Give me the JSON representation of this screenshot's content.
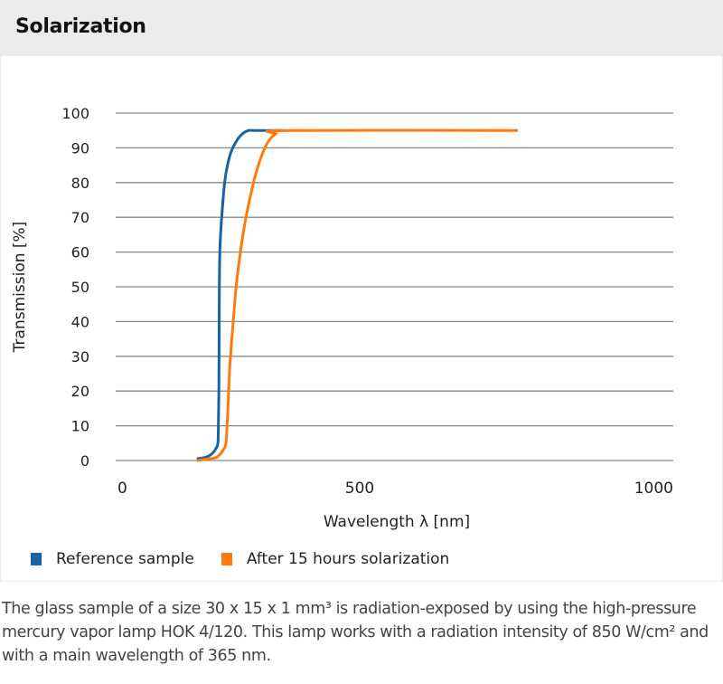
{
  "header": {
    "title": "Solarization"
  },
  "chart_data": {
    "type": "line",
    "title": "",
    "xlabel": "Wavelength λ [nm]",
    "ylabel": "Transmission [%]",
    "xlim": [
      0,
      1000
    ],
    "ylim": [
      0,
      100
    ],
    "xticks": [
      "0",
      "500",
      "1000"
    ],
    "yticks": [
      "0",
      "10",
      "20",
      "30",
      "40",
      "50",
      "60",
      "70",
      "80",
      "90",
      "100"
    ],
    "grid": "horizontal",
    "legend_position": "bottom-left",
    "series": [
      {
        "name": "Reference sample",
        "color": "#1763a6",
        "x": [
          160,
          180,
          192,
          200,
          204,
          205,
          206,
          206.5,
          207,
          208,
          210,
          213,
          218,
          224,
          232,
          243,
          255,
          268,
          280,
          343
        ],
        "y": [
          0.5,
          1,
          2,
          3.5,
          5,
          10,
          20,
          35,
          50,
          60,
          66,
          72,
          80,
          85,
          89,
          92,
          94,
          95,
          95,
          95
        ]
      },
      {
        "name": "After 15 hours solarization",
        "color": "#ff7a0e",
        "x": [
          160,
          185,
          202,
          215,
          221,
          223,
          225,
          228,
          232,
          236,
          242,
          251,
          260,
          270,
          282,
          296,
          310,
          325,
          349,
          830
        ],
        "y": [
          0,
          0.5,
          1,
          3,
          5,
          10,
          15,
          25,
          33,
          40,
          50,
          60,
          68,
          75,
          82,
          88,
          92,
          94,
          95,
          95
        ]
      }
    ]
  },
  "caption": "The glass sample of a size 30 x 15 x 1 mm³ is radiation-exposed by using the high-pressure mercury vapor lamp HOK 4/120. This lamp works with a radiation intensity of 850 W/cm² and with a main wavelength of 365 nm."
}
